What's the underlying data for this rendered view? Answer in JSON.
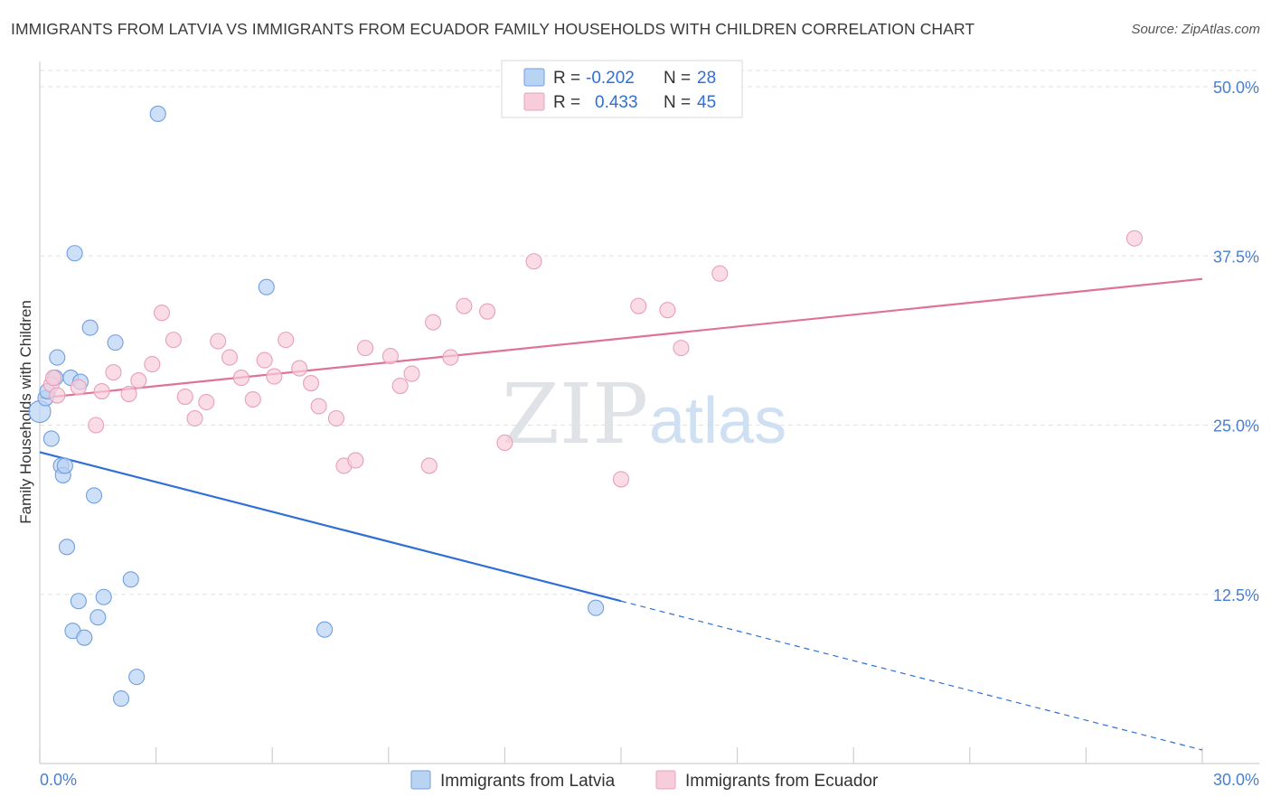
{
  "title": "IMMIGRANTS FROM LATVIA VS IMMIGRANTS FROM ECUADOR FAMILY HOUSEHOLDS WITH CHILDREN CORRELATION CHART",
  "source": "Source: ZipAtlas.com",
  "watermark": {
    "zip": "ZIP",
    "atlas": "atlas"
  },
  "legend": {
    "latvia": {
      "r_label": "R =",
      "r_value": "-0.202",
      "n_label": "N =",
      "n_value": "28"
    },
    "ecuador": {
      "r_label": "R =",
      "r_value": "0.433",
      "n_label": "N =",
      "n_value": "45"
    }
  },
  "bottom_legend": {
    "latvia": "Immigrants from Latvia",
    "ecuador": "Immigrants from Ecuador"
  },
  "chart_data": {
    "type": "scatter",
    "xlabel": "",
    "ylabel": "Family Households with Children",
    "xlim": [
      0,
      30
    ],
    "ylim": [
      0,
      50
    ],
    "x_tick_labels": [
      "0.0%",
      "30.0%"
    ],
    "y_ticks": [
      12.5,
      25.0,
      37.5,
      50.0
    ],
    "y_tick_labels": [
      "12.5%",
      "25.0%",
      "37.5%",
      "50.0%"
    ],
    "grid": true,
    "colors": {
      "latvia": "#6f9fe0",
      "latvia_fill": "#b9d3f3",
      "latvia_line": "#2f6fd6",
      "ecuador": "#e8a0b8",
      "ecuador_fill": "#f8cddb",
      "ecuador_line": "#e07298"
    },
    "series": [
      {
        "name": "Immigrants from Latvia",
        "key": "latvia",
        "points": [
          [
            0.0,
            26.0
          ],
          [
            0.15,
            27.0
          ],
          [
            0.2,
            27.5
          ],
          [
            0.3,
            24.0
          ],
          [
            0.4,
            28.5
          ],
          [
            0.45,
            30.0
          ],
          [
            0.55,
            22.0
          ],
          [
            0.6,
            21.3
          ],
          [
            0.65,
            22.0
          ],
          [
            0.7,
            16.0
          ],
          [
            0.8,
            28.5
          ],
          [
            0.9,
            37.7
          ],
          [
            0.85,
            9.8
          ],
          [
            1.0,
            12.0
          ],
          [
            1.05,
            28.2
          ],
          [
            1.15,
            9.3
          ],
          [
            1.3,
            32.2
          ],
          [
            1.4,
            19.8
          ],
          [
            1.5,
            10.8
          ],
          [
            1.65,
            12.3
          ],
          [
            1.95,
            31.1
          ],
          [
            2.1,
            4.8
          ],
          [
            2.35,
            13.6
          ],
          [
            2.5,
            6.4
          ],
          [
            3.05,
            48.0
          ],
          [
            5.85,
            35.2
          ],
          [
            7.35,
            9.9
          ],
          [
            14.35,
            11.5
          ]
        ],
        "trend": {
          "x0": 0,
          "y0": 23.0,
          "x1": 15.0,
          "y1": 12.0,
          "x_end": 30.0,
          "y_end": 1.0
        }
      },
      {
        "name": "Immigrants from Ecuador",
        "key": "ecuador",
        "points": [
          [
            0.3,
            28.0
          ],
          [
            0.35,
            28.5
          ],
          [
            0.45,
            27.2
          ],
          [
            1.0,
            27.8
          ],
          [
            1.45,
            25.0
          ],
          [
            1.6,
            27.5
          ],
          [
            1.9,
            28.9
          ],
          [
            2.3,
            27.3
          ],
          [
            2.55,
            28.3
          ],
          [
            2.9,
            29.5
          ],
          [
            3.15,
            33.3
          ],
          [
            3.45,
            31.3
          ],
          [
            3.75,
            27.1
          ],
          [
            4.0,
            25.5
          ],
          [
            4.3,
            26.7
          ],
          [
            4.6,
            31.2
          ],
          [
            4.9,
            30.0
          ],
          [
            5.2,
            28.5
          ],
          [
            5.5,
            26.9
          ],
          [
            5.8,
            29.8
          ],
          [
            6.05,
            28.6
          ],
          [
            6.35,
            31.3
          ],
          [
            6.7,
            29.2
          ],
          [
            7.0,
            28.1
          ],
          [
            7.2,
            26.4
          ],
          [
            7.65,
            25.5
          ],
          [
            7.85,
            22.0
          ],
          [
            8.15,
            22.4
          ],
          [
            8.4,
            30.7
          ],
          [
            9.05,
            30.1
          ],
          [
            9.3,
            27.9
          ],
          [
            9.6,
            28.8
          ],
          [
            10.05,
            22.0
          ],
          [
            10.15,
            32.6
          ],
          [
            10.6,
            30.0
          ],
          [
            10.95,
            33.8
          ],
          [
            11.55,
            33.4
          ],
          [
            12.0,
            23.7
          ],
          [
            12.75,
            37.1
          ],
          [
            15.0,
            21.0
          ],
          [
            15.45,
            33.8
          ],
          [
            16.2,
            33.5
          ],
          [
            16.55,
            30.7
          ],
          [
            17.55,
            36.2
          ],
          [
            28.25,
            38.8
          ]
        ],
        "trend": {
          "x0": 0,
          "y0": 27.0,
          "x1": 30.0,
          "y1": 35.8
        }
      }
    ]
  }
}
